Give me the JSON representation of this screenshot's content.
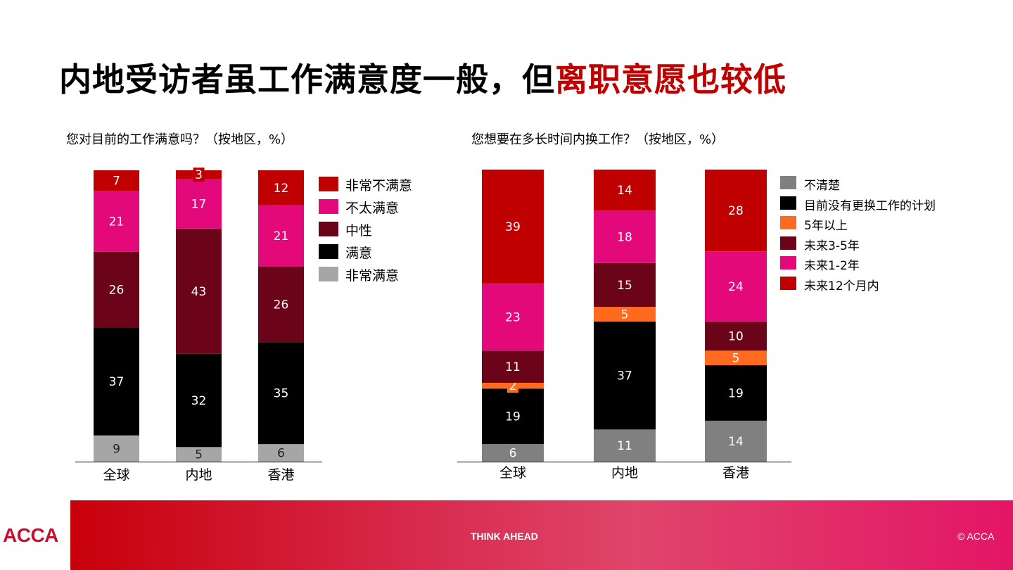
{
  "title": {
    "main": "内地受访者虽工作满意度一般，但",
    "highlight": "离职意愿也较低"
  },
  "colors": {
    "highlight": "#c00000",
    "dark_red": "#c00000",
    "pink": "#e4097a",
    "maroon": "#6b0319",
    "black": "#000000",
    "light_gray": "#a6a6a6",
    "gray": "#808080",
    "orange": "#ff6a1f"
  },
  "chart_data": [
    {
      "type": "bar",
      "stacked": true,
      "title": "您对目前的工作满意吗？（按地区，%）",
      "categories": [
        "全球",
        "内地",
        "香港"
      ],
      "series": [
        {
          "name": "非常满意",
          "color": "#a6a6a6",
          "values": [
            9,
            5,
            6
          ]
        },
        {
          "name": "满意",
          "color": "#000000",
          "values": [
            37,
            32,
            35
          ]
        },
        {
          "name": "中性",
          "color": "#6b0319",
          "values": [
            26,
            43,
            26
          ]
        },
        {
          "name": "不太满意",
          "color": "#e4097a",
          "values": [
            21,
            17,
            21
          ]
        },
        {
          "name": "非常不满意",
          "color": "#c00000",
          "values": [
            7,
            3,
            12
          ]
        }
      ],
      "legend": [
        "非常不满意",
        "不太满意",
        "中性",
        "满意",
        "非常满意"
      ],
      "legend_placement": "right"
    },
    {
      "type": "bar",
      "stacked": true,
      "title": "您想要在多长时间内换工作？（按地区，%）",
      "categories": [
        "全球",
        "内地",
        "香港"
      ],
      "series": [
        {
          "name": "不清楚",
          "color": "#808080",
          "values": [
            6,
            11,
            14
          ]
        },
        {
          "name": "目前没有更换工作的计划",
          "color": "#000000",
          "values": [
            19,
            37,
            19
          ]
        },
        {
          "name": "5年以上",
          "color": "#ff6a1f",
          "values": [
            2,
            5,
            5
          ]
        },
        {
          "name": "未来3-5年",
          "color": "#6b0319",
          "values": [
            11,
            15,
            10
          ]
        },
        {
          "name": "未来1-2年",
          "color": "#e4097a",
          "values": [
            23,
            18,
            24
          ]
        },
        {
          "name": "未来12个月内",
          "color": "#c00000",
          "values": [
            39,
            14,
            28
          ]
        }
      ],
      "legend": [
        "不清楚",
        "目前没有更换工作的计划",
        "5年以上",
        "未来3-5年",
        "未来1-2年",
        "未来12个月内"
      ],
      "legend_placement": "right"
    }
  ],
  "footer": {
    "logo": "ACCA",
    "tagline": "THINK AHEAD",
    "copyright": "© ACCA"
  }
}
